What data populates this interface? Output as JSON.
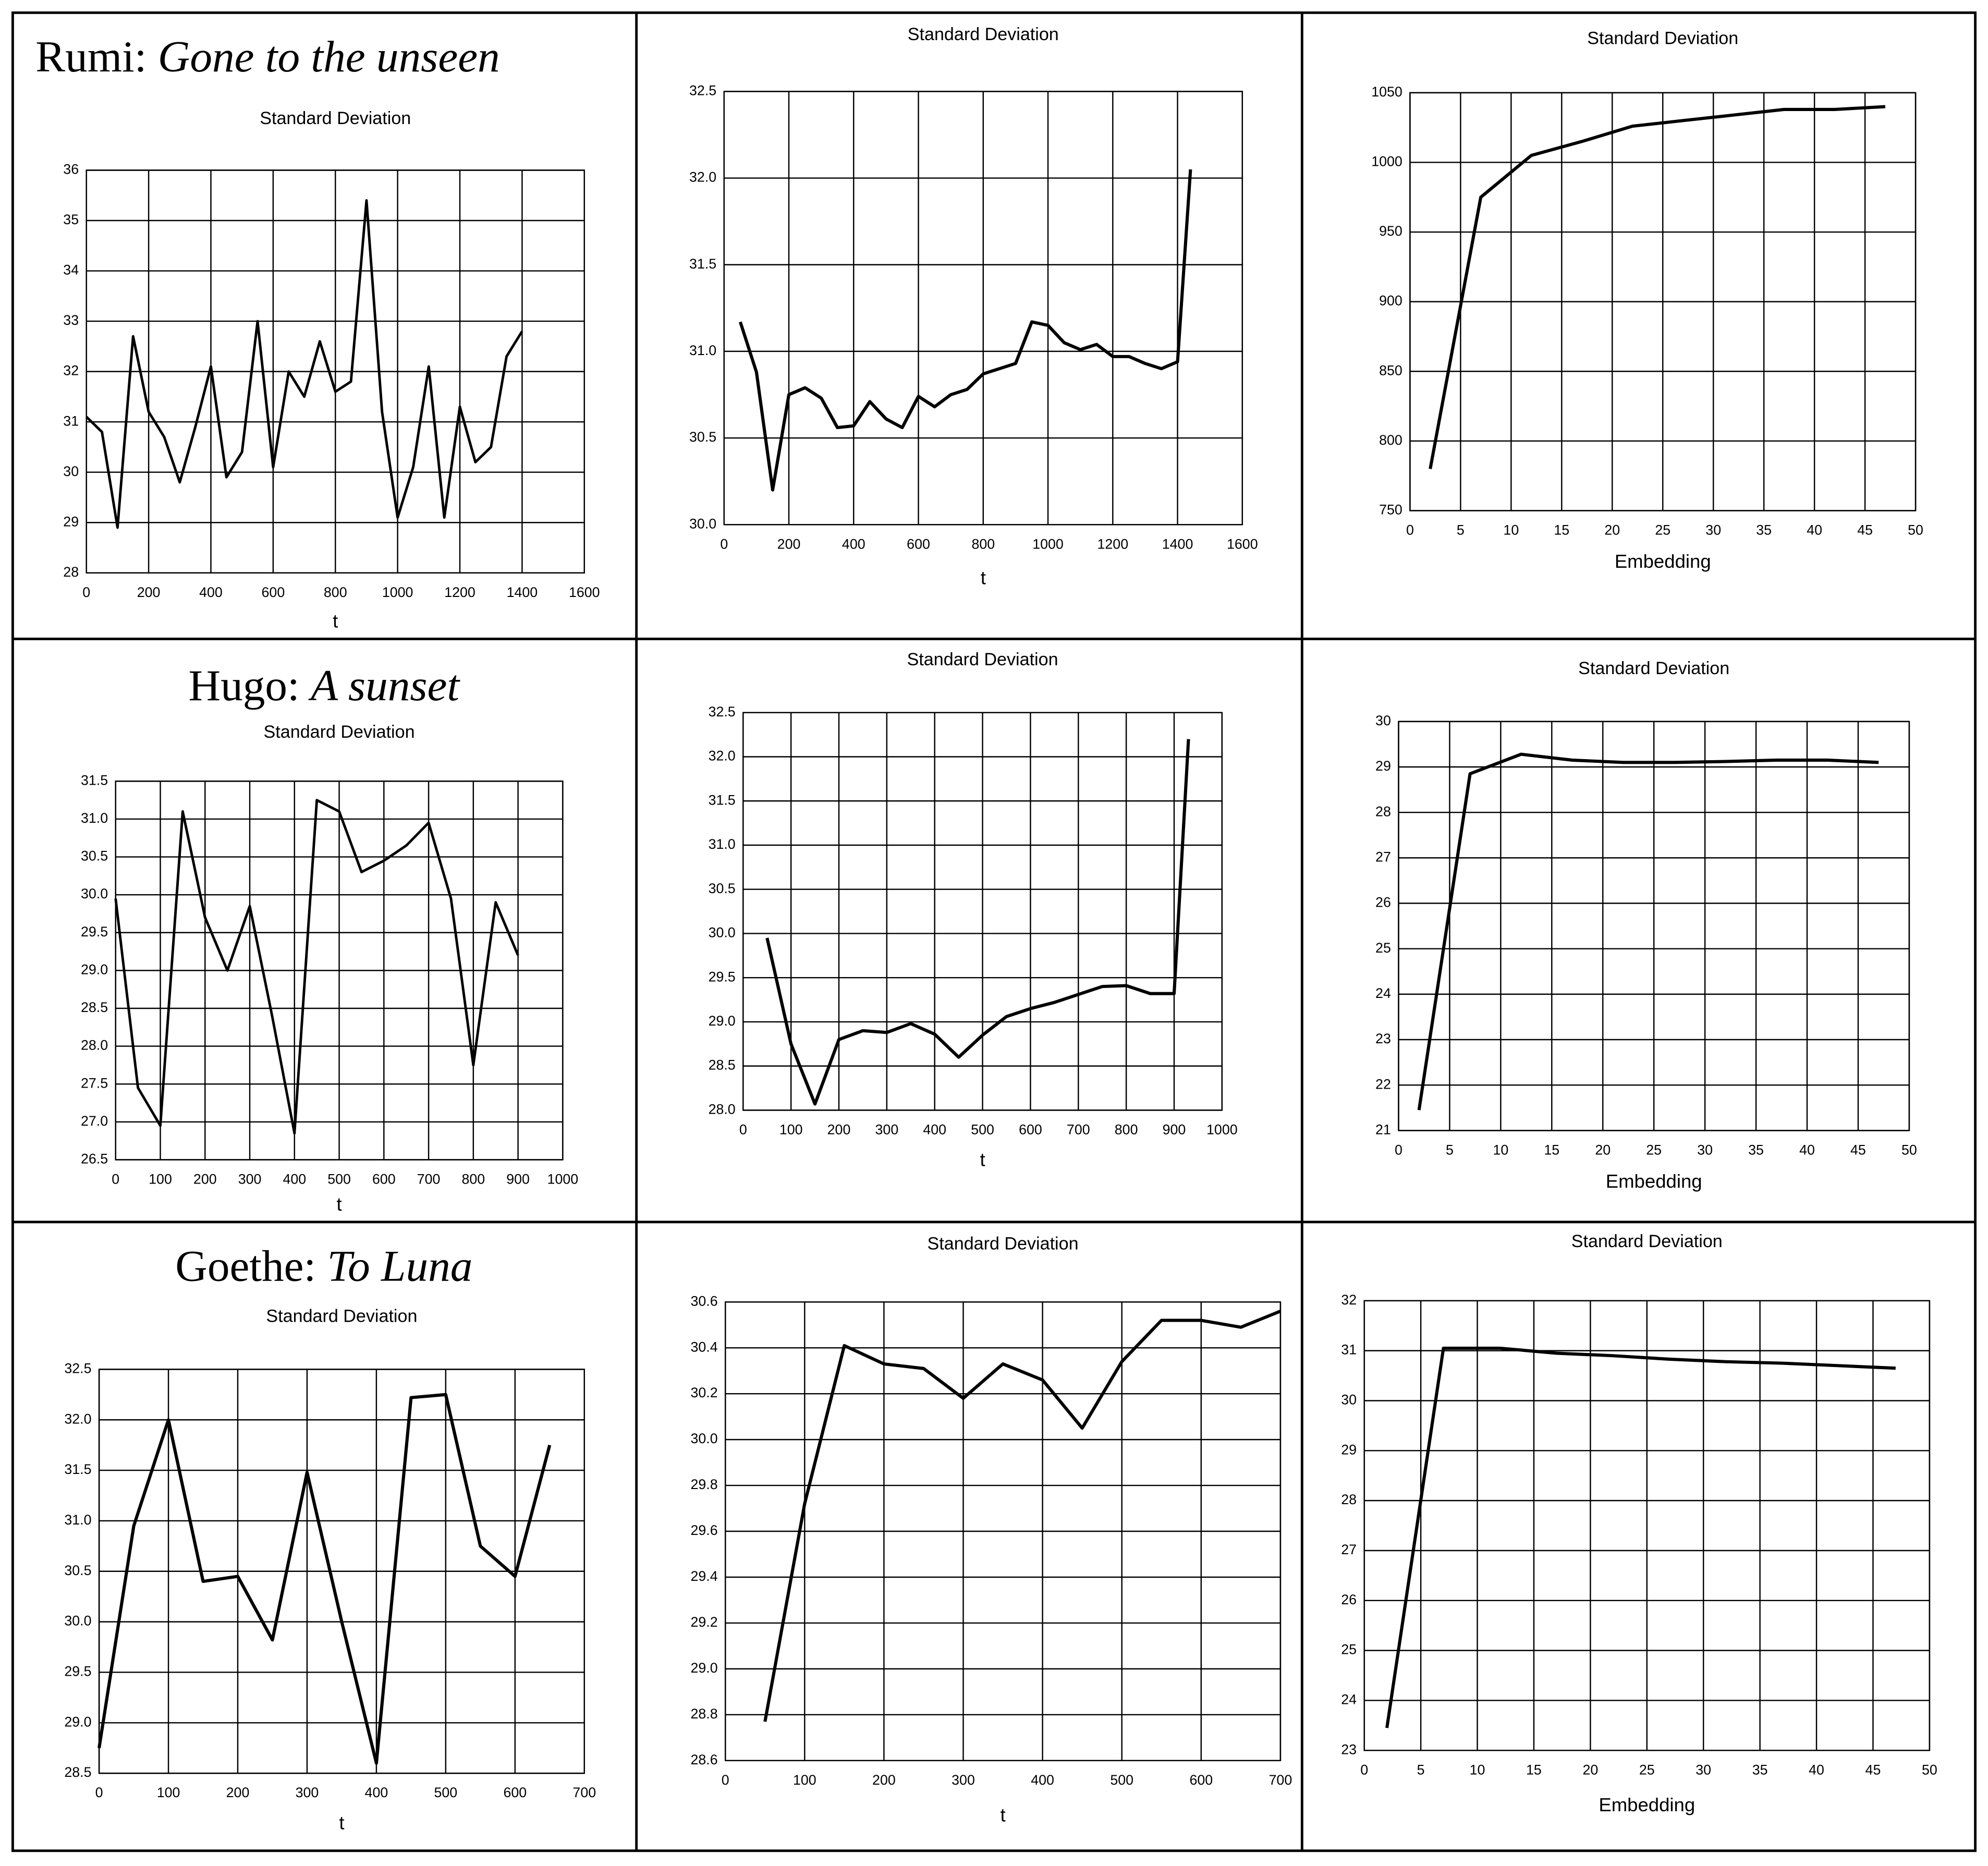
{
  "chart_data": [
    {
      "type": "line",
      "heading": {
        "author": "Rumi: ",
        "work": "Gone to the unseen"
      },
      "title": "Standard Deviation",
      "xlabel": "t",
      "x": [
        0,
        50,
        100,
        150,
        200,
        250,
        300,
        350,
        400,
        450,
        500,
        550,
        600,
        650,
        700,
        750,
        800,
        850,
        900,
        950,
        1000,
        1050,
        1100,
        1150,
        1200,
        1250,
        1300,
        1350,
        1400
      ],
      "values": [
        31.1,
        30.8,
        28.9,
        32.7,
        31.2,
        30.7,
        29.8,
        30.9,
        32.1,
        29.9,
        30.4,
        33.0,
        30.1,
        32.0,
        31.5,
        32.6,
        31.6,
        31.8,
        35.4,
        31.2,
        29.1,
        30.1,
        32.1,
        29.1,
        31.3,
        30.2,
        30.5,
        32.3,
        32.8
      ],
      "color": "#000000",
      "grid": true,
      "xlim": [
        0,
        1600
      ],
      "xticks": [
        0,
        200,
        400,
        600,
        800,
        1000,
        1200,
        1400,
        1600
      ],
      "ylim": [
        28,
        36
      ],
      "yticks": [
        28,
        29,
        30,
        31,
        32,
        33,
        34,
        35,
        36
      ]
    },
    {
      "type": "line",
      "title": "Standard Deviation",
      "xlabel": "t",
      "x": [
        50,
        100,
        150,
        200,
        250,
        300,
        350,
        400,
        450,
        500,
        550,
        600,
        650,
        700,
        750,
        800,
        850,
        900,
        950,
        1000,
        1050,
        1100,
        1150,
        1200,
        1250,
        1300,
        1350,
        1400,
        1440
      ],
      "values": [
        31.17,
        30.88,
        30.2,
        30.75,
        30.79,
        30.73,
        30.56,
        30.57,
        30.71,
        30.61,
        30.56,
        30.74,
        30.68,
        30.75,
        30.78,
        30.87,
        30.9,
        30.93,
        31.17,
        31.15,
        31.05,
        31.01,
        31.04,
        30.97,
        30.97,
        30.93,
        30.9,
        30.94,
        32.05
      ],
      "color": "#000000",
      "grid": true,
      "xlim": [
        0,
        1600
      ],
      "xticks": [
        0,
        200,
        400,
        600,
        800,
        1000,
        1200,
        1400,
        1600
      ],
      "ylim": [
        30,
        32.5
      ],
      "yticks": [
        {
          "value": 30,
          "label": "30.0"
        },
        30.5,
        {
          "value": 31,
          "label": "31.0"
        },
        31.5,
        {
          "value": 32,
          "label": "32.0"
        },
        32.5
      ]
    },
    {
      "type": "line",
      "title": "Standard Deviation",
      "xlabel": "Embedding",
      "x": [
        2,
        7,
        12,
        17,
        22,
        27,
        32,
        37,
        42,
        47
      ],
      "values": [
        780,
        975,
        1005,
        1015,
        1026,
        1030,
        1034,
        1038,
        1038,
        1040
      ],
      "color": "#000000",
      "grid": true,
      "xlim": [
        0,
        50
      ],
      "xticks": [
        0,
        5,
        10,
        15,
        20,
        25,
        30,
        35,
        40,
        45,
        50
      ],
      "ylim": [
        750,
        1050
      ],
      "yticks": [
        750,
        800,
        850,
        900,
        950,
        1000,
        1050
      ]
    },
    {
      "type": "line",
      "heading": {
        "author": "Hugo: ",
        "work": "A sunset"
      },
      "title": "Standard Deviation",
      "xlabel": "t",
      "x": [
        0,
        50,
        100,
        150,
        200,
        250,
        300,
        350,
        400,
        450,
        500,
        550,
        600,
        650,
        700,
        750,
        800,
        850,
        900
      ],
      "values": [
        29.95,
        27.45,
        26.95,
        31.1,
        29.7,
        29.0,
        29.85,
        28.4,
        26.85,
        31.25,
        31.1,
        30.3,
        30.45,
        30.65,
        30.95,
        29.95,
        27.75,
        29.9,
        29.2
      ],
      "color": "#000000",
      "grid": true,
      "xlim": [
        0,
        1000
      ],
      "xticks": [
        0,
        100,
        200,
        300,
        400,
        500,
        600,
        700,
        800,
        900,
        1000
      ],
      "ylim": [
        26.5,
        31.5
      ],
      "yticks": [
        26.5,
        {
          "value": 27,
          "label": "27.0"
        },
        27.5,
        {
          "value": 28,
          "label": "28.0"
        },
        28.5,
        {
          "value": 29,
          "label": "29.0"
        },
        29.5,
        {
          "value": 30,
          "label": "30.0"
        },
        30.5,
        {
          "value": 31,
          "label": "31.0"
        },
        31.5
      ]
    },
    {
      "type": "line",
      "title": "Standard Deviation",
      "xlabel": "t",
      "x": [
        50,
        100,
        150,
        200,
        250,
        300,
        350,
        400,
        450,
        500,
        550,
        600,
        650,
        700,
        750,
        800,
        850,
        900,
        930
      ],
      "values": [
        29.95,
        28.75,
        28.07,
        28.8,
        28.9,
        28.88,
        28.98,
        28.86,
        28.6,
        28.85,
        29.06,
        29.15,
        29.22,
        29.31,
        29.4,
        29.41,
        29.32,
        29.32,
        32.2
      ],
      "color": "#000000",
      "grid": true,
      "xlim": [
        0,
        1000
      ],
      "xticks": [
        0,
        100,
        200,
        300,
        400,
        500,
        600,
        700,
        800,
        900,
        1000
      ],
      "ylim": [
        28,
        32.5
      ],
      "yticks": [
        {
          "value": 28,
          "label": "28.0"
        },
        28.5,
        {
          "value": 29,
          "label": "29.0"
        },
        29.5,
        {
          "value": 30,
          "label": "30.0"
        },
        30.5,
        {
          "value": 31,
          "label": "31.0"
        },
        31.5,
        {
          "value": 32,
          "label": "32.0"
        },
        32.5
      ]
    },
    {
      "type": "line",
      "title": "Standard Deviation",
      "xlabel": "Embedding",
      "x": [
        2,
        7,
        12,
        17,
        22,
        27,
        32,
        37,
        42,
        47
      ],
      "values": [
        21.45,
        28.85,
        29.28,
        29.15,
        29.1,
        29.1,
        29.12,
        29.15,
        29.15,
        29.1
      ],
      "color": "#000000",
      "grid": true,
      "xlim": [
        0,
        50
      ],
      "xticks": [
        0,
        5,
        10,
        15,
        20,
        25,
        30,
        35,
        40,
        45,
        50
      ],
      "ylim": [
        21,
        30
      ],
      "yticks": [
        21,
        22,
        23,
        24,
        25,
        26,
        27,
        28,
        29,
        30
      ]
    },
    {
      "type": "line",
      "heading": {
        "author": "Goethe: ",
        "work": "To Luna"
      },
      "title": "Standard Deviation",
      "xlabel": "t",
      "x": [
        0,
        50,
        100,
        150,
        200,
        250,
        300,
        350,
        400,
        450,
        500,
        550,
        600,
        650
      ],
      "values": [
        28.75,
        30.95,
        32.0,
        30.4,
        30.45,
        29.82,
        31.48,
        30.0,
        28.6,
        32.22,
        32.25,
        30.75,
        30.45,
        31.75
      ],
      "color": "#000000",
      "grid": true,
      "xlim": [
        0,
        700
      ],
      "xticks": [
        0,
        100,
        200,
        300,
        400,
        500,
        600,
        700
      ],
      "ylim": [
        28.5,
        32.5
      ],
      "yticks": [
        28.5,
        {
          "value": 29,
          "label": "29.0"
        },
        29.5,
        {
          "value": 30,
          "label": "30.0"
        },
        30.5,
        {
          "value": 31,
          "label": "31.0"
        },
        31.5,
        {
          "value": 32,
          "label": "32.0"
        },
        32.5
      ]
    },
    {
      "type": "line",
      "title": "Standard Deviation",
      "xlabel": "t",
      "x": [
        50,
        100,
        150,
        200,
        250,
        300,
        350,
        400,
        450,
        500,
        550,
        600,
        650,
        700
      ],
      "values": [
        28.77,
        29.72,
        30.41,
        30.33,
        30.31,
        30.18,
        30.33,
        30.26,
        30.05,
        30.34,
        30.52,
        30.52,
        30.49,
        30.56
      ],
      "color": "#000000",
      "grid": true,
      "xlim": [
        0,
        700
      ],
      "xticks": [
        0,
        100,
        200,
        300,
        400,
        500,
        600,
        700
      ],
      "ylim": [
        28.6,
        30.6
      ],
      "yticks": [
        28.6,
        28.8,
        {
          "value": 29,
          "label": "29.0"
        },
        29.2,
        29.4,
        29.6,
        29.8,
        {
          "value": 30,
          "label": "30.0"
        },
        30.2,
        30.4,
        30.6
      ]
    },
    {
      "type": "line",
      "title": "Standard Deviation",
      "xlabel": "Embedding",
      "x": [
        2,
        7,
        12,
        17,
        22,
        27,
        32,
        37,
        42,
        47
      ],
      "values": [
        23.45,
        31.05,
        31.05,
        30.95,
        30.9,
        30.83,
        30.78,
        30.75,
        30.7,
        30.65
      ],
      "color": "#000000",
      "grid": true,
      "xlim": [
        0,
        50
      ],
      "xticks": [
        0,
        5,
        10,
        15,
        20,
        25,
        30,
        35,
        40,
        45,
        50
      ],
      "ylim": [
        23,
        32
      ],
      "yticks": [
        23,
        24,
        25,
        26,
        27,
        28,
        29,
        30,
        31,
        32
      ]
    }
  ]
}
